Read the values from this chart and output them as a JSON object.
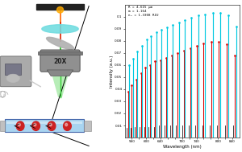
{
  "xlabel": "Wavelength (nm)",
  "ylabel": "Intensity (a.u.)",
  "x_min": 540,
  "x_max": 860,
  "y_min": 0,
  "y_max": 0.11,
  "legend_text": [
    "R = 4.615 μm",
    "m = 1.164",
    "nₐ = 1.3308 RIU"
  ],
  "black_peaks": [
    546,
    557,
    569,
    581,
    594,
    607,
    621,
    636,
    651,
    667,
    683,
    700,
    718,
    737,
    757,
    777,
    798,
    820,
    843
  ],
  "black_heights": [
    0.008,
    0.008,
    0.009,
    0.009,
    0.009,
    0.009,
    0.009,
    0.01,
    0.01,
    0.01,
    0.01,
    0.01,
    0.01,
    0.01,
    0.01,
    0.01,
    0.01,
    0.01,
    0.01
  ],
  "red_peaks": [
    549,
    560,
    572,
    585,
    598,
    611,
    625,
    640,
    655,
    671,
    687,
    704,
    722,
    741,
    760,
    781,
    802,
    824,
    847
  ],
  "red_heights": [
    0.038,
    0.043,
    0.048,
    0.053,
    0.058,
    0.06,
    0.063,
    0.064,
    0.066,
    0.068,
    0.07,
    0.072,
    0.074,
    0.076,
    0.078,
    0.079,
    0.079,
    0.077,
    0.068
  ],
  "cyan_peaks": [
    552,
    563,
    575,
    588,
    601,
    614,
    628,
    643,
    659,
    674,
    691,
    708,
    726,
    745,
    764,
    785,
    806,
    828,
    851
  ],
  "cyan_heights": [
    0.06,
    0.065,
    0.071,
    0.076,
    0.081,
    0.084,
    0.087,
    0.089,
    0.091,
    0.093,
    0.095,
    0.097,
    0.099,
    0.101,
    0.102,
    0.103,
    0.103,
    0.101,
    0.092
  ],
  "xtick_positions": [
    560,
    580,
    600,
    620,
    640,
    660,
    680,
    700,
    720,
    740,
    760,
    780,
    800,
    820,
    840
  ],
  "xtick_labels": [
    "560",
    "",
    "600",
    "",
    "640",
    "",
    "",
    "700",
    "",
    "740",
    "",
    "",
    "800",
    "",
    "840"
  ],
  "ytick_positions": [
    0.01,
    0.02,
    0.03,
    0.04,
    0.05,
    0.06,
    0.07,
    0.08,
    0.09,
    0.1
  ],
  "ytick_labels": [
    "0.01",
    "0.02",
    "0.03",
    "0.04",
    "0.05",
    "0.06",
    "0.07",
    "0.08",
    "0.09",
    "0.1"
  ],
  "black_color": "#111111",
  "red_color": "#dd0000",
  "cyan_color": "#00c8e0",
  "bar_top": "#222222",
  "cyan_lens": "#70dce0",
  "gray_lens": "#b0b0b0",
  "obj_color": "#909090",
  "channel_color": "#a8d4f0",
  "sphere_color": "#cc2222",
  "pump_color": "#aaaaaa",
  "bg_color": "#ffffff"
}
